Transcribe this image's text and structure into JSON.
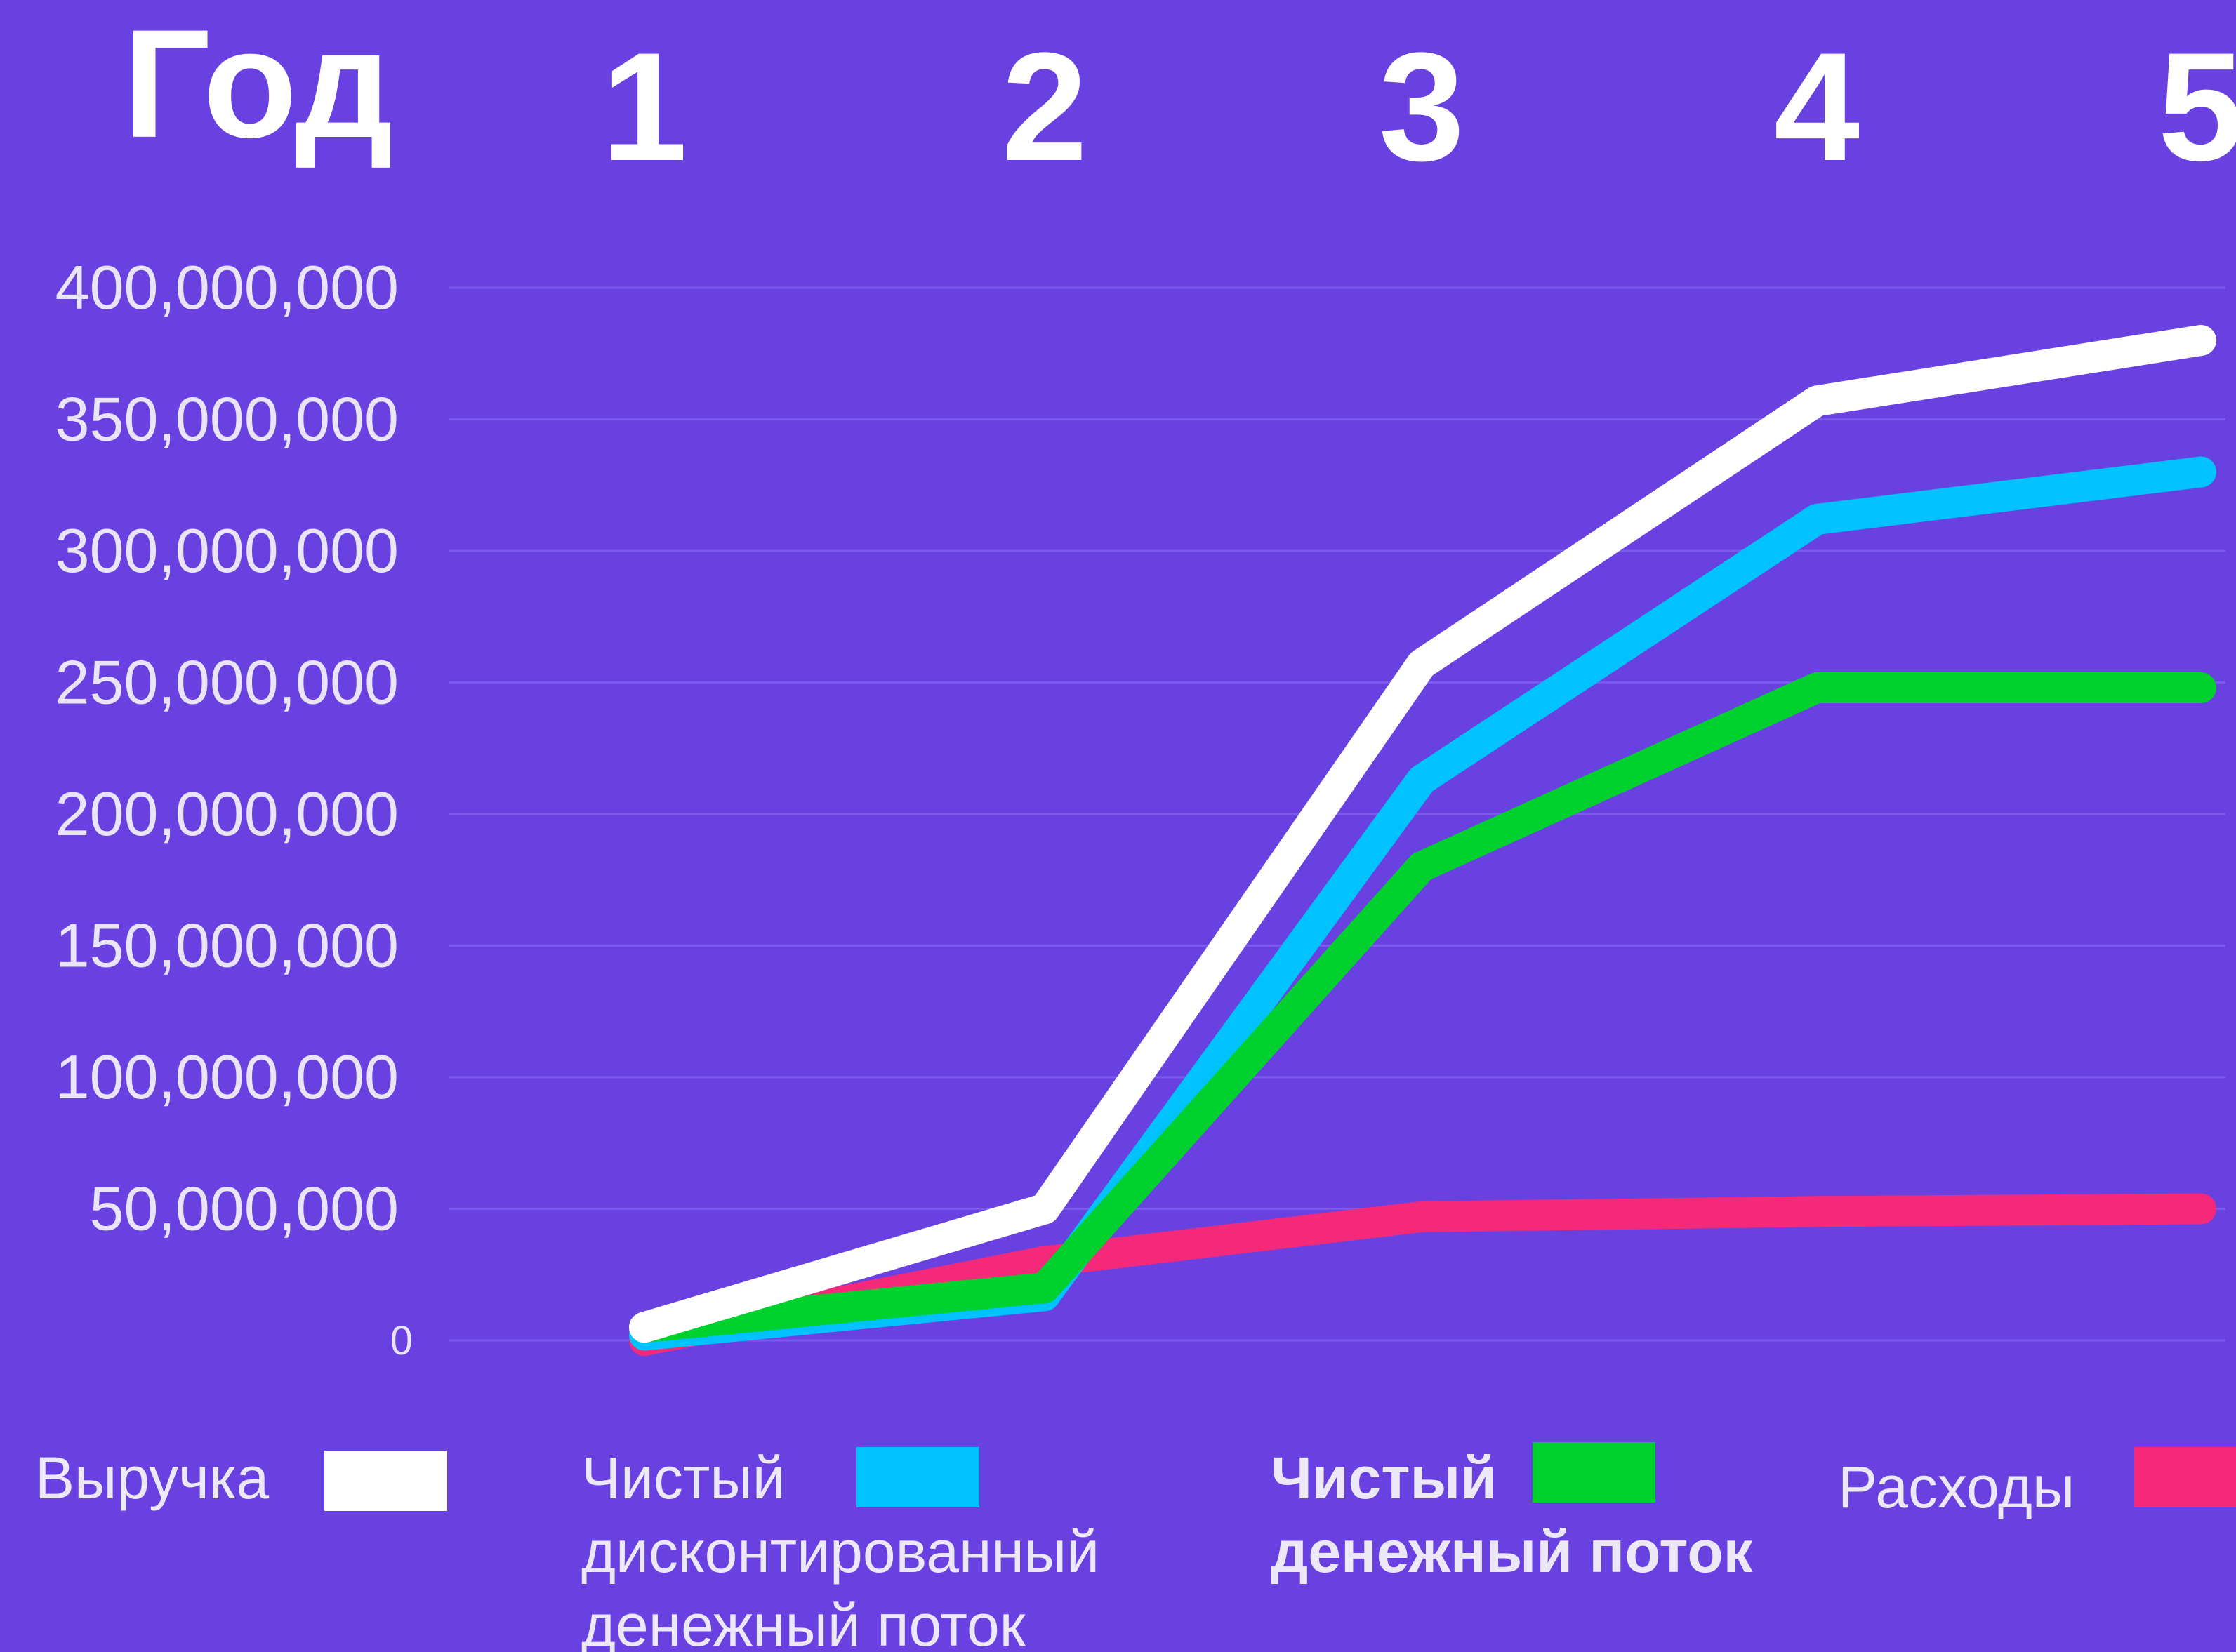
{
  "chart_data": {
    "type": "line",
    "title": "",
    "x_header": "Год",
    "categories": [
      "1",
      "2",
      "3",
      "4",
      "5"
    ],
    "ylim": [
      0,
      400000000
    ],
    "yticks": [
      "0",
      "50,000,000",
      "100,000,000",
      "150,000,000",
      "200,000,000",
      "250,000,000",
      "300,000,000",
      "350,000,000",
      "400,000,000"
    ],
    "grid": true,
    "legend_position": "bottom",
    "series": [
      {
        "name": "Выручка",
        "color": "#ffffff",
        "values": [
          5000000,
          50000000,
          257000000,
          357000000,
          380000000
        ]
      },
      {
        "name": "Чистый дисконтированный денежный поток",
        "color": "#00c2ff",
        "values": [
          2000000,
          17000000,
          213000000,
          312000000,
          330000000
        ]
      },
      {
        "name": "Чистый денежный поток",
        "color": "#00d12e",
        "values": [
          5000000,
          20000000,
          180000000,
          248000000,
          248000000
        ]
      },
      {
        "name": "Расходы",
        "color": "#f5297a",
        "values": [
          0,
          30000000,
          47000000,
          49000000,
          50000000
        ]
      }
    ],
    "legend": [
      {
        "lines": [
          "Выручка"
        ],
        "color": "#ffffff",
        "bold": false
      },
      {
        "lines": [
          "Чистый",
          "дисконтированный",
          "денежный поток"
        ],
        "color": "#00c2ff",
        "bold": false
      },
      {
        "lines": [
          "Чистый",
          "денежный поток"
        ],
        "color": "#00d12e",
        "bold": true
      },
      {
        "lines": [
          "Расходы"
        ],
        "color": "#f5297a",
        "bold": false
      }
    ],
    "background_color": "#6941e0",
    "grid_color": "#7b59ea"
  }
}
